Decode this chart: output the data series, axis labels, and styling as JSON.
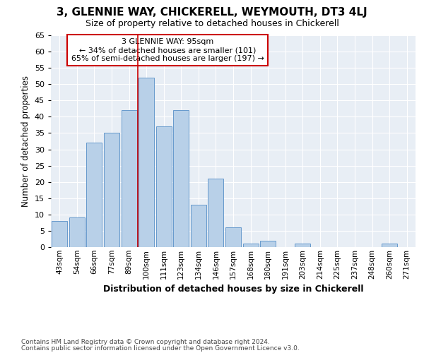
{
  "title": "3, GLENNIE WAY, CHICKERELL, WEYMOUTH, DT3 4LJ",
  "subtitle": "Size of property relative to detached houses in Chickerell",
  "xlabel": "Distribution of detached houses by size in Chickerell",
  "ylabel": "Number of detached properties",
  "bar_labels": [
    "43sqm",
    "54sqm",
    "66sqm",
    "77sqm",
    "89sqm",
    "100sqm",
    "111sqm",
    "123sqm",
    "134sqm",
    "146sqm",
    "157sqm",
    "168sqm",
    "180sqm",
    "191sqm",
    "203sqm",
    "214sqm",
    "225sqm",
    "237sqm",
    "248sqm",
    "260sqm",
    "271sqm"
  ],
  "bar_values": [
    8,
    9,
    32,
    35,
    42,
    52,
    37,
    42,
    13,
    21,
    6,
    1,
    2,
    0,
    1,
    0,
    0,
    0,
    0,
    1,
    0
  ],
  "bar_color": "#b8d0e8",
  "bar_edge_color": "#6699cc",
  "figure_bg": "#ffffff",
  "axes_bg": "#e8eef5",
  "grid_color": "#ffffff",
  "annotation_box_color": "#ffffff",
  "annotation_border_color": "#cc0000",
  "vline_color": "#cc0000",
  "vline_x": 4.5,
  "annotation_line1": "3 GLENNIE WAY: 95sqm",
  "annotation_line2": "← 34% of detached houses are smaller (101)",
  "annotation_line3": "65% of semi-detached houses are larger (197) →",
  "footer_line1": "Contains HM Land Registry data © Crown copyright and database right 2024.",
  "footer_line2": "Contains public sector information licensed under the Open Government Licence v3.0.",
  "ylim": [
    0,
    65
  ],
  "yticks": [
    0,
    5,
    10,
    15,
    20,
    25,
    30,
    35,
    40,
    45,
    50,
    55,
    60,
    65
  ]
}
